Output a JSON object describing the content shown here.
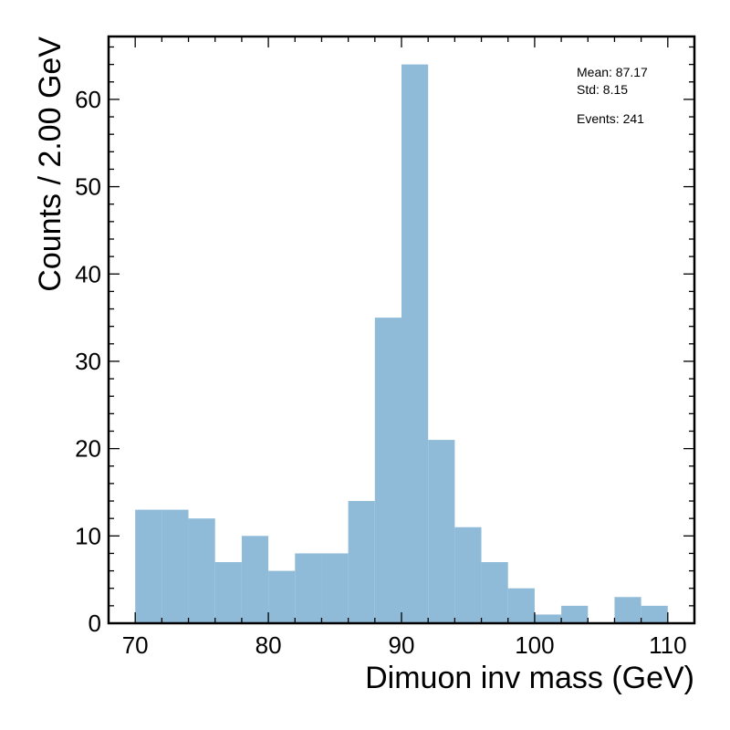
{
  "chart_data": {
    "type": "bar",
    "histogram": true,
    "bin_edges": [
      70,
      72,
      74,
      76,
      78,
      80,
      82,
      84,
      86,
      88,
      90,
      92,
      94,
      96,
      98,
      100,
      102,
      104,
      106,
      108,
      110
    ],
    "values": [
      13,
      13,
      12,
      7,
      10,
      6,
      8,
      8,
      14,
      35,
      64,
      21,
      11,
      7,
      4,
      1,
      2,
      0,
      3,
      2
    ],
    "xlabel": "Dimuon inv mass (GeV)",
    "ylabel": "Counts / 2.00 GeV",
    "xlim": [
      68,
      112
    ],
    "ylim": [
      0,
      67.2
    ],
    "x_ticks": [
      70,
      80,
      90,
      100,
      110
    ],
    "y_ticks": [
      0,
      10,
      20,
      30,
      40,
      50,
      60
    ],
    "grid": false,
    "bar_color": "#8fbbd9",
    "stats": {
      "mean": "Mean: 87.17",
      "std": "Std: 8.15",
      "events": "Events: 241"
    }
  }
}
